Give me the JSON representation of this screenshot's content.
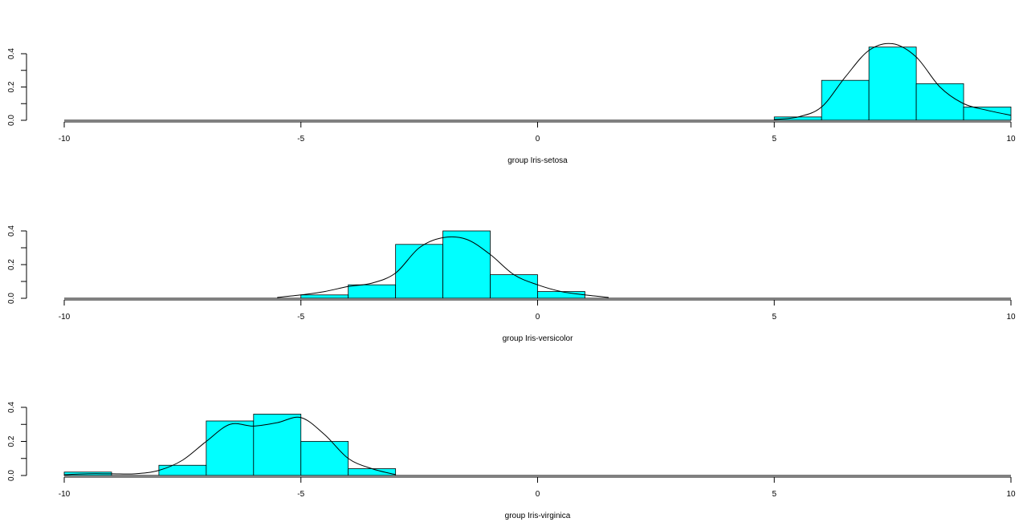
{
  "chart_data": [
    {
      "type": "bar",
      "xlabel": "group Iris-setosa",
      "xlim": [
        -10,
        10
      ],
      "ylim": [
        0,
        0.4
      ],
      "xticks": [
        -10,
        -5,
        0,
        5,
        10
      ],
      "xtick_labels": [
        "-10",
        "-5",
        "0",
        "5",
        "10"
      ],
      "yticks": [
        0.0,
        0.2,
        0.4
      ],
      "ytick_labels": [
        "0.0",
        "0.2",
        "0.4"
      ],
      "bin_width": 1,
      "bins": [
        {
          "x0": 5,
          "x1": 6,
          "density": 0.02
        },
        {
          "x0": 6,
          "x1": 7,
          "density": 0.24
        },
        {
          "x0": 7,
          "x1": 8,
          "density": 0.44
        },
        {
          "x0": 8,
          "x1": 9,
          "density": 0.22
        },
        {
          "x0": 9,
          "x1": 10,
          "density": 0.08
        }
      ],
      "density_curve": {
        "x": [
          5.0,
          5.5,
          6.0,
          6.5,
          7.0,
          7.5,
          8.0,
          8.5,
          9.0,
          9.5,
          10.0
        ],
        "y": [
          0.005,
          0.02,
          0.08,
          0.26,
          0.42,
          0.46,
          0.38,
          0.2,
          0.1,
          0.06,
          0.03
        ]
      },
      "grid": false,
      "bar_color": "#00ffff",
      "line_color": "#000000"
    },
    {
      "type": "bar",
      "xlabel": "group Iris-versicolor",
      "xlim": [
        -10,
        10
      ],
      "ylim": [
        0,
        0.4
      ],
      "xticks": [
        -10,
        -5,
        0,
        5,
        10
      ],
      "xtick_labels": [
        "-10",
        "-5",
        "0",
        "5",
        "10"
      ],
      "yticks": [
        0.0,
        0.2,
        0.4
      ],
      "ytick_labels": [
        "0.0",
        "0.2",
        "0.4"
      ],
      "bin_width": 1,
      "bins": [
        {
          "x0": -5.5,
          "x1": -5,
          "density": 0.0
        },
        {
          "x0": -5,
          "x1": -4,
          "density": 0.02
        },
        {
          "x0": -4,
          "x1": -3,
          "density": 0.08
        },
        {
          "x0": -3,
          "x1": -2,
          "density": 0.32
        },
        {
          "x0": -2,
          "x1": -1,
          "density": 0.4
        },
        {
          "x0": -1,
          "x1": 0,
          "density": 0.14
        },
        {
          "x0": 0,
          "x1": 1,
          "density": 0.04
        },
        {
          "x0": 1,
          "x1": 1.5,
          "density": 0.0
        }
      ],
      "density_curve": {
        "x": [
          -5.5,
          -5.0,
          -4.5,
          -4.0,
          -3.5,
          -3.0,
          -2.5,
          -2.0,
          -1.5,
          -1.0,
          -0.5,
          0.0,
          0.5,
          1.0,
          1.5
        ],
        "y": [
          0.005,
          0.02,
          0.04,
          0.07,
          0.09,
          0.15,
          0.3,
          0.36,
          0.35,
          0.26,
          0.14,
          0.08,
          0.04,
          0.02,
          0.005
        ]
      },
      "grid": false,
      "bar_color": "#00ffff",
      "line_color": "#000000"
    },
    {
      "type": "bar",
      "xlabel": "group Iris-virginica",
      "xlim": [
        -10,
        10
      ],
      "ylim": [
        0,
        0.4
      ],
      "xticks": [
        -10,
        -5,
        0,
        5,
        10
      ],
      "xtick_labels": [
        "-10",
        "-5",
        "0",
        "5",
        "10"
      ],
      "yticks": [
        0.0,
        0.2,
        0.4
      ],
      "ytick_labels": [
        "0.0",
        "0.2",
        "0.4"
      ],
      "bin_width": 1,
      "bins": [
        {
          "x0": -10,
          "x1": -9,
          "density": 0.02
        },
        {
          "x0": -9,
          "x1": -8,
          "density": 0.0
        },
        {
          "x0": -8,
          "x1": -7,
          "density": 0.06
        },
        {
          "x0": -7,
          "x1": -6,
          "density": 0.32
        },
        {
          "x0": -6,
          "x1": -5,
          "density": 0.36
        },
        {
          "x0": -5,
          "x1": -4,
          "density": 0.2
        },
        {
          "x0": -4,
          "x1": -3,
          "density": 0.04
        }
      ],
      "density_curve": {
        "x": [
          -10.0,
          -9.5,
          -9.0,
          -8.5,
          -8.0,
          -7.5,
          -7.0,
          -6.5,
          -6.0,
          -5.5,
          -5.0,
          -4.5,
          -4.0,
          -3.5,
          -3.0
        ],
        "y": [
          0.005,
          0.01,
          0.01,
          0.01,
          0.03,
          0.09,
          0.2,
          0.3,
          0.29,
          0.31,
          0.34,
          0.24,
          0.1,
          0.04,
          0.005
        ]
      },
      "grid": false,
      "bar_color": "#00ffff",
      "line_color": "#000000"
    }
  ]
}
